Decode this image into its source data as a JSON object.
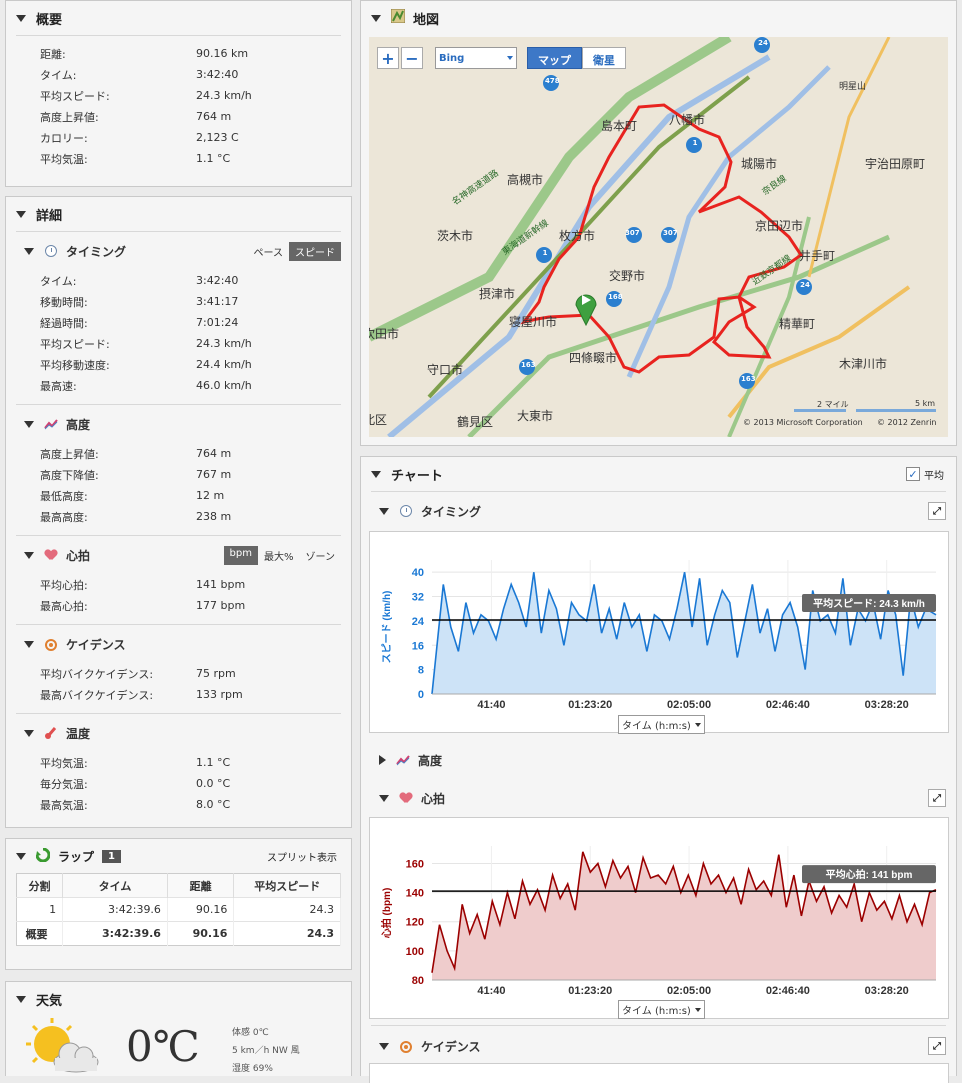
{
  "summary": {
    "title": "概要",
    "rows": [
      {
        "k": "距離:",
        "v": "90.16 km"
      },
      {
        "k": "タイム:",
        "v": "3:42:40"
      },
      {
        "k": "平均スピード:",
        "v": "24.3 km/h"
      },
      {
        "k": "高度上昇値:",
        "v": "764 m"
      },
      {
        "k": "カロリー:",
        "v": "2,123 C"
      },
      {
        "k": "平均気温:",
        "v": "1.1 °C"
      }
    ]
  },
  "detail": {
    "title": "詳細",
    "timing": {
      "title": "タイミング",
      "toggle": [
        "ペース",
        "スピード"
      ],
      "rows": [
        {
          "k": "タイム:",
          "v": "3:42:40"
        },
        {
          "k": "移動時間:",
          "v": "3:41:17"
        },
        {
          "k": "経過時間:",
          "v": "7:01:24"
        },
        {
          "k": "平均スピード:",
          "v": "24.3 km/h"
        },
        {
          "k": "平均移動速度:",
          "v": "24.4 km/h"
        },
        {
          "k": "最高速:",
          "v": "46.0 km/h"
        }
      ]
    },
    "elevation": {
      "title": "高度",
      "rows": [
        {
          "k": "高度上昇値:",
          "v": "764 m"
        },
        {
          "k": "高度下降値:",
          "v": "767 m"
        },
        {
          "k": "最低高度:",
          "v": "12 m"
        },
        {
          "k": "最高高度:",
          "v": "238 m"
        }
      ]
    },
    "hr": {
      "title": "心拍",
      "toggle": [
        "bpm",
        "最大%",
        "ゾーン"
      ],
      "rows": [
        {
          "k": "平均心拍:",
          "v": "141 bpm"
        },
        {
          "k": "最高心拍:",
          "v": "177 bpm"
        }
      ]
    },
    "cadence": {
      "title": "ケイデンス",
      "rows": [
        {
          "k": "平均バイクケイデンス:",
          "v": "75 rpm"
        },
        {
          "k": "最高バイクケイデンス:",
          "v": "133 rpm"
        }
      ]
    },
    "temp": {
      "title": "温度",
      "rows": [
        {
          "k": "平均気温:",
          "v": "1.1 °C"
        },
        {
          "k": "毎分気温:",
          "v": "0.0 °C"
        },
        {
          "k": "最高気温:",
          "v": "8.0 °C"
        }
      ]
    }
  },
  "laps": {
    "title": "ラップ",
    "count": "1",
    "split": "スプリット表示",
    "headers": [
      "分割",
      "タイム",
      "距離",
      "平均スピード"
    ],
    "rows": [
      [
        "1",
        "3:42:39.6",
        "90.16",
        "24.3"
      ]
    ],
    "summary": [
      "概要",
      "3:42:39.6",
      "90.16",
      "24.3"
    ]
  },
  "weather": {
    "title": "天気",
    "temp": "0℃",
    "feel": "体感 0℃",
    "wind": "5 km／h NW 風",
    "humidity": "湿度 69%"
  },
  "map": {
    "title": "地図",
    "provider": "Bing",
    "btn_map": "マップ",
    "btn_sat": "衛星",
    "scale_mi": "2 マイル",
    "scale_km": "5 km",
    "copy1": "© 2013 Microsoft Corporation",
    "copy2": "© 2012 Zenrin",
    "labels": [
      "島本町",
      "八幡市",
      "城陽市",
      "宇治田原町",
      "高槻市",
      "京田辺市",
      "井手町",
      "茨木市",
      "枚方市",
      "交野市",
      "摂津市",
      "寝屋川市",
      "精華町",
      "四條畷市",
      "守口市",
      "木津川市",
      "大東市",
      "吹田市",
      "鶴見区",
      "北区",
      "明星山",
      "名神高速道路",
      "東海道新幹線",
      "奈良線",
      "近鉄京都線"
    ],
    "road_labels": [
      "478",
      "1",
      "307",
      "307",
      "24",
      "24",
      "168",
      "1",
      "163",
      "163"
    ]
  },
  "charts": {
    "title": "チャート",
    "avg_label": "平均",
    "timing": {
      "title": "タイミング"
    },
    "elevation": {
      "title": "高度"
    },
    "hr": {
      "title": "心拍"
    },
    "cadence": {
      "title": "ケイデンス"
    },
    "axis_select": "タイム (h:m:s)"
  },
  "chart_data": [
    {
      "type": "area",
      "title": "",
      "xlabel": "タイム (h:m:s)",
      "ylabel": "スピード (km/h)",
      "ylim": [
        0,
        44
      ],
      "yticks": [
        0,
        8,
        16,
        24,
        32,
        40
      ],
      "xticks": [
        "41:40",
        "01:23:20",
        "02:05:00",
        "02:46:40",
        "03:28:20"
      ],
      "xlim": [
        0,
        13370
      ],
      "annotation": "平均スピード: 24.3 km/h",
      "avg": 24.3,
      "color": "#1a78d4",
      "x": [
        0,
        300,
        500,
        700,
        900,
        1100,
        1300,
        1500,
        1700,
        1900,
        2100,
        2300,
        2500,
        2700,
        2900,
        3100,
        3300,
        3500,
        3700,
        3900,
        4100,
        4300,
        4500,
        4700,
        4900,
        5100,
        5300,
        5500,
        5700,
        5900,
        6100,
        6300,
        6500,
        6700,
        6900,
        7100,
        7300,
        7500,
        7700,
        7900,
        8100,
        8300,
        8500,
        8700,
        8900,
        9100,
        9300,
        9500,
        9700,
        9900,
        10100,
        10300,
        10500,
        10700,
        10900,
        11100,
        11300,
        11500,
        11700,
        11900,
        12100,
        12300,
        12500,
        12700,
        12900,
        13100,
        13370
      ],
      "y": [
        0,
        36,
        22,
        14,
        30,
        20,
        26,
        24,
        18,
        28,
        36,
        30,
        22,
        40,
        20,
        34,
        28,
        16,
        30,
        26,
        24,
        36,
        20,
        28,
        18,
        30,
        22,
        26,
        14,
        26,
        24,
        18,
        28,
        40,
        22,
        38,
        16,
        26,
        34,
        30,
        12,
        24,
        36,
        20,
        28,
        14,
        26,
        30,
        22,
        8,
        34,
        24,
        26,
        20,
        38,
        16,
        28,
        24,
        30,
        18,
        34,
        26,
        6,
        32,
        22,
        28,
        26
      ]
    },
    {
      "type": "area",
      "title": "",
      "xlabel": "タイム (h:m:s)",
      "ylabel": "心拍 (bpm)",
      "ylim": [
        80,
        172
      ],
      "yticks": [
        80,
        100,
        120,
        140,
        160
      ],
      "xticks": [
        "41:40",
        "01:23:20",
        "02:05:00",
        "02:46:40",
        "03:28:20"
      ],
      "xlim": [
        0,
        13370
      ],
      "annotation": "平均心拍: 141 bpm",
      "avg": 141,
      "color": "#9b0000",
      "x": [
        0,
        200,
        400,
        600,
        800,
        1000,
        1200,
        1400,
        1600,
        1800,
        2000,
        2200,
        2400,
        2600,
        2800,
        3000,
        3200,
        3400,
        3600,
        3800,
        4000,
        4200,
        4400,
        4600,
        4800,
        5000,
        5200,
        5400,
        5600,
        5800,
        6000,
        6200,
        6400,
        6600,
        6800,
        7000,
        7200,
        7400,
        7600,
        7800,
        8000,
        8200,
        8400,
        8600,
        8800,
        9000,
        9200,
        9400,
        9600,
        9800,
        10000,
        10200,
        10400,
        10600,
        10800,
        11000,
        11200,
        11400,
        11600,
        11800,
        12000,
        12200,
        12400,
        12600,
        12800,
        13000,
        13200,
        13370
      ],
      "y": [
        85,
        118,
        100,
        88,
        132,
        112,
        125,
        108,
        134,
        118,
        140,
        122,
        148,
        132,
        142,
        128,
        152,
        136,
        146,
        128,
        168,
        154,
        160,
        144,
        162,
        150,
        158,
        140,
        164,
        150,
        152,
        146,
        158,
        140,
        152,
        138,
        160,
        146,
        152,
        140,
        150,
        132,
        156,
        142,
        148,
        138,
        166,
        130,
        152,
        124,
        148,
        134,
        144,
        126,
        138,
        130,
        146,
        120,
        140,
        128,
        134,
        122,
        138,
        120,
        132,
        118,
        140,
        142
      ]
    }
  ]
}
